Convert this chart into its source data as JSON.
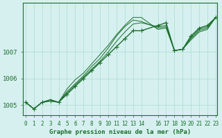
{
  "xlabel": "Graphe pression niveau de la mer (hPa)",
  "background_color": "#d6f0f0",
  "grid_color": "#aaddcc",
  "line_color": "#1a6e2a",
  "xlim_min": -0.3,
  "xlim_max": 23.2,
  "ylim_min": 1004.6,
  "ylim_max": 1008.85,
  "yticks": [
    1005,
    1006,
    1007
  ],
  "xticks": [
    0,
    1,
    2,
    3,
    4,
    5,
    6,
    7,
    8,
    9,
    10,
    11,
    12,
    13,
    14,
    16,
    17,
    18,
    19,
    20,
    21,
    22,
    23
  ],
  "xtick_labels": [
    "0",
    "1",
    "2",
    "3",
    "4",
    "5",
    "6",
    "7",
    "8",
    "9",
    "10",
    "11",
    "12",
    "13",
    "14",
    "16",
    "17",
    "18",
    "19",
    "20",
    "21",
    "22",
    "23"
  ],
  "series": [
    [
      1005.1,
      1004.85,
      1005.1,
      1005.15,
      1005.1,
      1005.4,
      1005.7,
      1006.0,
      1006.3,
      1006.6,
      1006.9,
      1007.2,
      1007.5,
      1007.8,
      1007.8,
      null,
      1008.0,
      1008.1,
      1007.05,
      1007.1,
      1007.6,
      1007.9,
      1008.0,
      1008.3
    ],
    [
      1005.1,
      1004.85,
      1005.1,
      1005.15,
      1005.1,
      1005.45,
      1005.75,
      1006.05,
      1006.35,
      1006.65,
      1007.0,
      1007.4,
      1007.75,
      1008.05,
      1008.1,
      null,
      1007.95,
      1008.0,
      1007.05,
      1007.1,
      1007.55,
      1007.85,
      1007.95,
      1008.3
    ],
    [
      1005.1,
      1004.85,
      1005.1,
      1005.2,
      1005.1,
      1005.5,
      1005.8,
      1006.1,
      1006.45,
      1006.75,
      1007.15,
      1007.6,
      1007.95,
      1008.2,
      1008.15,
      null,
      1007.9,
      1007.95,
      1007.05,
      1007.1,
      1007.5,
      1007.8,
      1007.9,
      1008.3
    ],
    [
      1005.1,
      1004.85,
      1005.1,
      1005.2,
      1005.1,
      1005.6,
      1005.95,
      1006.2,
      1006.55,
      1006.9,
      1007.25,
      1007.65,
      1008.0,
      1008.3,
      1008.3,
      null,
      1007.85,
      1007.9,
      1007.05,
      1007.1,
      1007.45,
      1007.75,
      1007.85,
      1008.3
    ]
  ],
  "marker": "+",
  "markersize": 4,
  "linewidth": 1.0
}
